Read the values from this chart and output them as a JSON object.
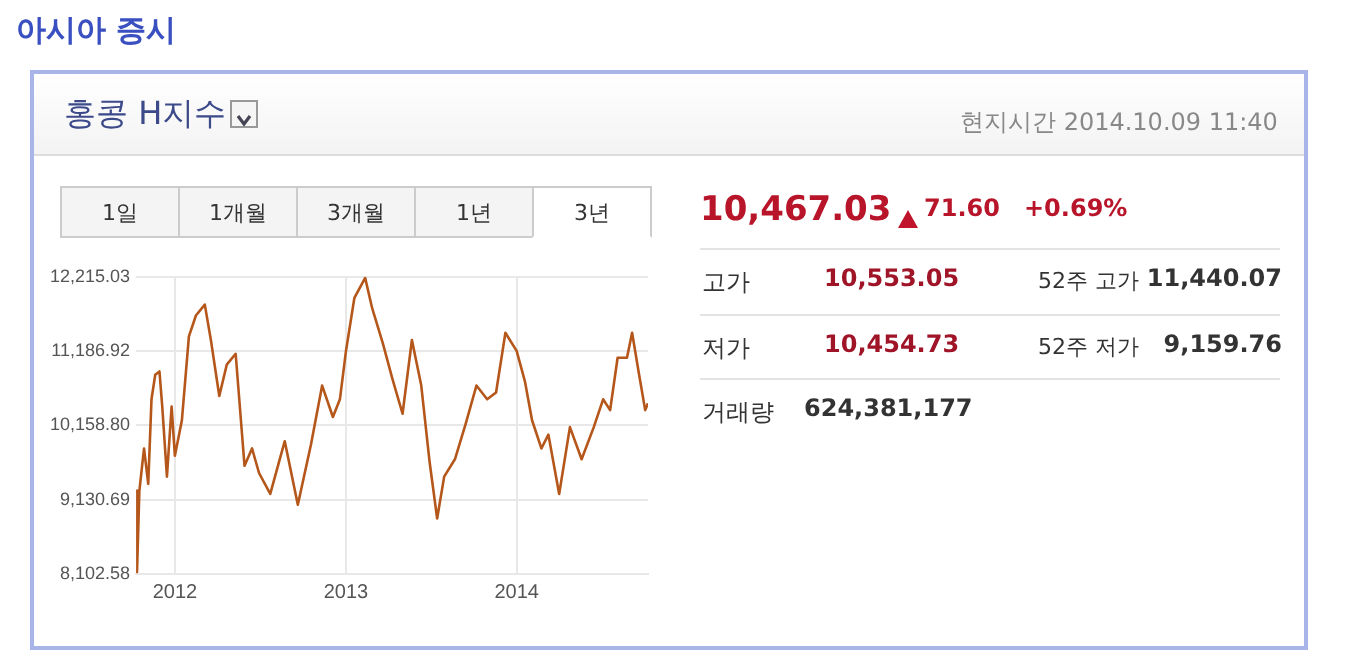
{
  "chart_data": {
    "type": "line",
    "title": "아시아 증시",
    "subtitle": "홍콩 H지수",
    "annotations": [
      "현지시간 2014.10.09 11:40",
      "1일",
      "1개월",
      "3개월",
      "1년",
      "3년",
      "10,467.03",
      "71.60",
      "+0.69%",
      "고가",
      "10,553.05",
      "52주 고가",
      "11,440.07",
      "저가",
      "10,454.73",
      "52주 저가",
      "9,159.76",
      "거래량",
      "624,381,177"
    ],
    "x": [
      "2011-10-10",
      "2011-10-12",
      "2011-10-17",
      "2011-10-27",
      "2011-11-05",
      "2011-11-12",
      "2011-11-20",
      "2011-11-29",
      "2011-12-05",
      "2011-12-15",
      "2011-12-25",
      "2012-01-01",
      "2012-01-16",
      "2012-01-31",
      "2012-02-15",
      "2012-03-05",
      "2012-03-18",
      "2012-04-05",
      "2012-04-21",
      "2012-05-10",
      "2012-05-29",
      "2012-06-14",
      "2012-06-29",
      "2012-07-23",
      "2012-08-23",
      "2012-09-20",
      "2012-10-18",
      "2012-11-11",
      "2012-12-04",
      "2012-12-19",
      "2013-01-01",
      "2013-01-19",
      "2013-02-11",
      "2013-02-26",
      "2013-03-21",
      "2013-04-10",
      "2013-05-02",
      "2013-05-22",
      "2013-06-11",
      "2013-06-29",
      "2013-07-15",
      "2013-07-30",
      "2013-08-22",
      "2013-09-14",
      "2013-10-07",
      "2013-10-30",
      "2013-11-18",
      "2013-12-08",
      "2014-01-01",
      "2014-01-19",
      "2014-02-03",
      "2014-02-23",
      "2014-03-10",
      "2014-04-02",
      "2014-04-25",
      "2014-05-20",
      "2014-06-15",
      "2014-07-05",
      "2014-07-20",
      "2014-08-05",
      "2014-08-25",
      "2014-09-05",
      "2014-09-20",
      "2014-10-03",
      "2014-10-09"
    ],
    "series": [
      {
        "color": "#b5561a",
        "values": [
          9256,
          8130,
          9250,
          9840,
          9350,
          10520,
          10860,
          10905,
          10420,
          9450,
          10420,
          9740,
          10230,
          11390,
          11680,
          11830,
          11340,
          10565,
          11000,
          11150,
          9600,
          9840,
          9500,
          9210,
          9940,
          9060,
          9890,
          10710,
          10275,
          10520,
          11190,
          11925,
          12200,
          11780,
          11290,
          10810,
          10320,
          11340,
          10710,
          9645,
          8870,
          9450,
          9690,
          10180,
          10710,
          10520,
          10615,
          11440,
          11190,
          10760,
          10230,
          9840,
          10030,
          9210,
          10135,
          9690,
          10135,
          10520,
          10370,
          11095,
          11095,
          11440,
          10860,
          10370,
          10467
        ]
      }
    ],
    "xlim": [
      "2011-10-10",
      "2014-10-09"
    ],
    "xticks": [
      "2012",
      "2013",
      "2014"
    ],
    "ylim": [
      8102.58,
      12215.03
    ],
    "yticks": [
      {
        "value": 8102.58,
        "label": "8,102.58"
      },
      {
        "value": 9130.69,
        "label": "9,130.69"
      },
      {
        "value": 10158.8,
        "label": "10,158.80"
      },
      {
        "value": 11186.92,
        "label": "11,186.92"
      },
      {
        "value": 12215.03,
        "label": "12,215.03"
      }
    ],
    "grid": true,
    "legend": false,
    "marker": "none",
    "line_style": "solid"
  }
}
